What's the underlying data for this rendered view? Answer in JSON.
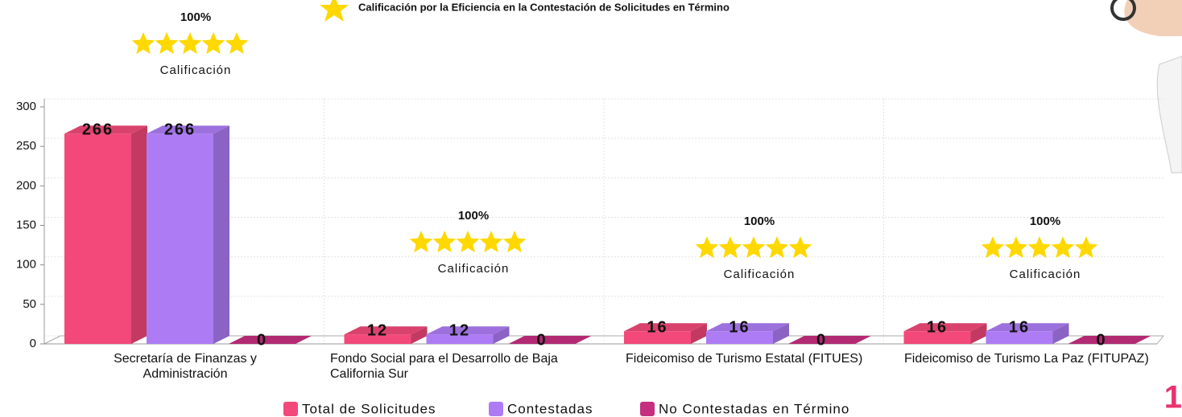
{
  "chart_data": {
    "type": "bar3d",
    "title": "Calificación por la Eficiencia en la Contestación de Solicitudes en Término",
    "categories": [
      "Secretaría de Finanzas y Administración",
      "Fondo Social para el Desarrollo de Baja California Sur",
      "Fideicomiso de Turismo Estatal (FITUES)",
      "Fideicomiso de Turismo La Paz (FITUPAZ)"
    ],
    "series": [
      {
        "name": "Total de Solicitudes",
        "color": "#f2497a",
        "values": [
          266,
          12,
          16,
          16
        ]
      },
      {
        "name": "Contestadas",
        "color": "#ad7cf5",
        "values": [
          266,
          12,
          16,
          16
        ]
      },
      {
        "name": "No Contestadas en Término",
        "color": "#c62f7f",
        "values": [
          0,
          0,
          0,
          0
        ]
      }
    ],
    "ylim": [
      0,
      300
    ],
    "yticks": [
      0,
      50,
      100,
      150,
      200,
      250,
      300
    ],
    "grid": true,
    "legend": "bottom",
    "ratings": [
      {
        "value": 100,
        "value_label": "100%",
        "caption": "Calificación"
      },
      {
        "value": 100,
        "value_label": "100%",
        "caption": "Calificación"
      },
      {
        "value": 100,
        "value_label": "100%",
        "caption": "Calificación"
      },
      {
        "value": 100,
        "value_label": "100%",
        "caption": "Calificación"
      }
    ],
    "page_number": "1"
  }
}
